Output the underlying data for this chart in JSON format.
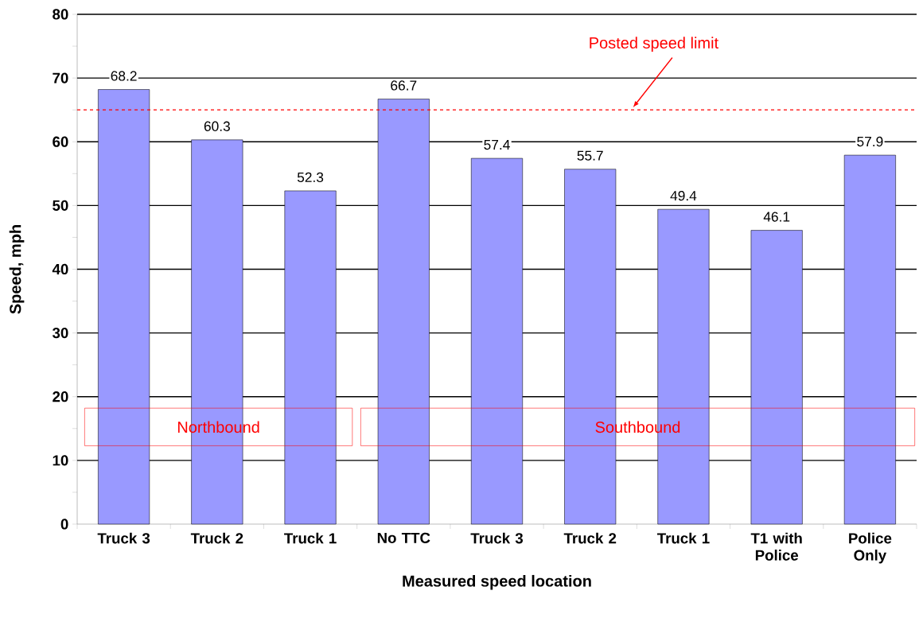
{
  "chart_data": {
    "type": "bar",
    "xlabel": "Measured speed location",
    "ylabel": "Speed, mph",
    "categories": [
      "Truck 3",
      "Truck 2",
      "Truck 1",
      "No TTC",
      "Truck 3",
      "Truck 2",
      "Truck 1",
      "T1 with Police",
      "Police Only"
    ],
    "values": [
      68.2,
      60.3,
      52.3,
      66.7,
      57.4,
      55.7,
      49.4,
      46.1,
      57.9
    ],
    "color": "#9999ff",
    "data_labels": true,
    "ylim": [
      0,
      80
    ],
    "yticks": [
      0,
      {
        "value": 5,
        "label": null
      },
      10,
      {
        "value": 15,
        "label": null
      },
      20,
      {
        "value": 25,
        "label": null
      },
      30,
      {
        "value": 35,
        "label": null
      },
      40,
      {
        "value": 45,
        "label": null
      },
      50,
      {
        "value": 55,
        "label": null
      },
      60,
      {
        "value": 65,
        "label": null
      },
      70,
      {
        "value": 75,
        "label": null
      },
      80
    ],
    "grid": "y",
    "ref_lines": [
      {
        "axis": "y",
        "value": 65,
        "label": "Posted speed limit",
        "color": "#ff0000",
        "line_style": "dashed"
      }
    ],
    "annotations": [
      "Northbound",
      "Southbound"
    ]
  }
}
